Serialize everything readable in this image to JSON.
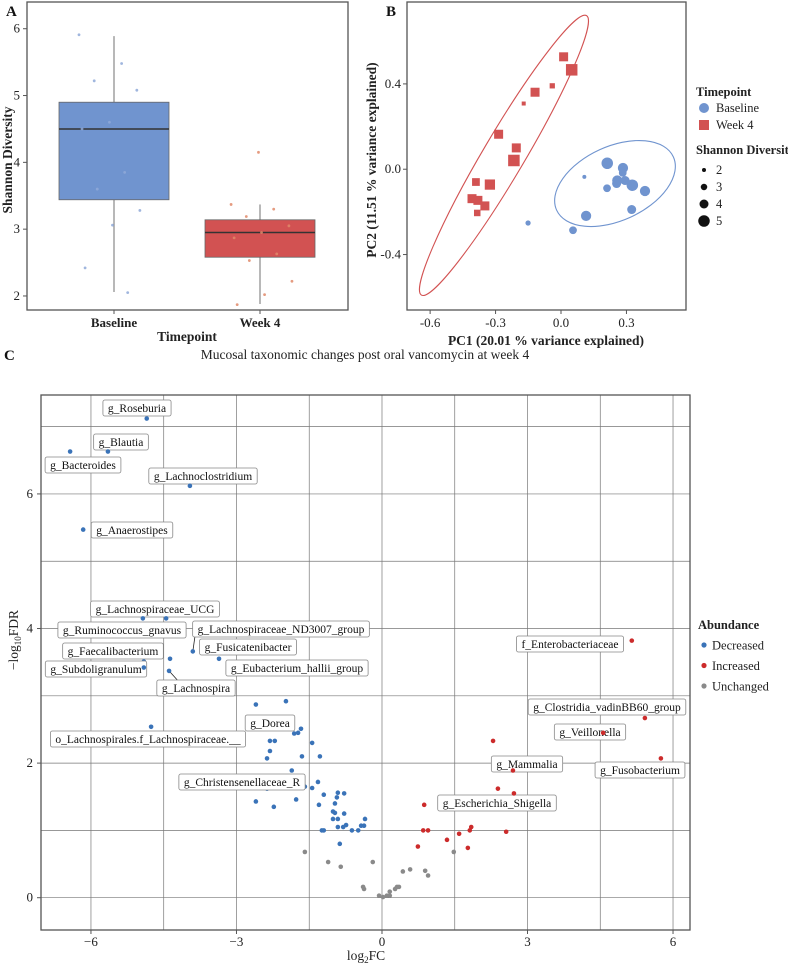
{
  "colors": {
    "baseline": "#7094cf",
    "week4": "#d25252",
    "decreased": "#3a73b8",
    "increased": "#cc2b2b",
    "unchanged": "#8a8a8a"
  },
  "chart_data": [
    {
      "panel": "A",
      "type": "box",
      "categories": [
        "Baseline",
        "Week 4"
      ],
      "xlabel": "Timepoint",
      "ylabel": "Shannon Diversity",
      "yticks": [
        2,
        3,
        4,
        5,
        6
      ],
      "ylim": [
        1.79,
        6.4
      ],
      "boxes": [
        {
          "name": "Baseline",
          "whisker_low": 2.06,
          "q1": 3.44,
          "median": 4.5,
          "q3": 4.9,
          "whisker_high": 5.89,
          "points": [
            5.91,
            5.48,
            5.22,
            5.08,
            4.6,
            4.5,
            3.85,
            3.6,
            3.28,
            3.06,
            2.42,
            2.05
          ]
        },
        {
          "name": "Week 4",
          "whisker_low": 1.88,
          "q1": 2.58,
          "median": 2.95,
          "q3": 3.14,
          "whisker_high": 3.37,
          "points": [
            4.15,
            3.37,
            3.3,
            3.19,
            3.05,
            2.95,
            2.87,
            2.63,
            2.53,
            2.22,
            2.02,
            1.87
          ]
        }
      ]
    },
    {
      "panel": "B",
      "type": "scatter",
      "xlabel": "PC1 (20.01 % variance explained)",
      "ylabel": "PC2 (11.51 % variance explained)",
      "xticks": [
        -0.6,
        -0.3,
        0.0,
        0.3
      ],
      "xtick_labels": [
        "-0.6",
        "-0.3",
        "0.0",
        "0.3"
      ],
      "yticks": [
        -0.4,
        0.0,
        0.4
      ],
      "ytick_labels": [
        "-0.4",
        "0.0",
        "0.4"
      ],
      "xlim": [
        -0.706,
        0.573
      ],
      "ylim": [
        -0.66,
        0.784
      ],
      "legend": {
        "timepoint_title": "Timepoint",
        "timepoint_items": [
          "Baseline",
          "Week 4"
        ],
        "size_title": "Shannon Diversity",
        "size_items": [
          "2",
          "3",
          "4",
          "5"
        ]
      },
      "series": [
        {
          "name": "Baseline",
          "shape": "circle",
          "points": [
            [
              0.212,
              0.028,
              5
            ],
            [
              0.284,
              0.006,
              4.5
            ],
            [
              0.283,
              -0.017,
              3.5
            ],
            [
              0.107,
              -0.036,
              2
            ],
            [
              0.258,
              -0.053,
              4.5
            ],
            [
              0.294,
              -0.053,
              4
            ],
            [
              0.327,
              -0.075,
              5
            ],
            [
              0.255,
              -0.067,
              4
            ],
            [
              0.211,
              -0.089,
              3.5
            ],
            [
              0.385,
              -0.102,
              4.5
            ],
            [
              0.324,
              -0.189,
              4
            ],
            [
              0.115,
              -0.219,
              4.5
            ],
            [
              -0.151,
              -0.252,
              2.5
            ],
            [
              0.055,
              -0.286,
              3.5
            ]
          ],
          "ellipse": {
            "axis_end1": [
              -0.02,
              -0.192
            ],
            "axis_end2": [
              0.515,
              0.058
            ],
            "semi_minor": 0.17
          }
        },
        {
          "name": "Week 4",
          "shape": "square",
          "points": [
            [
              0.012,
              0.527,
              4
            ],
            [
              0.049,
              0.466,
              5
            ],
            [
              -0.04,
              0.391,
              2.5
            ],
            [
              -0.119,
              0.361,
              4
            ],
            [
              -0.171,
              0.308,
              2
            ],
            [
              -0.286,
              0.164,
              4
            ],
            [
              -0.205,
              0.1,
              4
            ],
            [
              -0.216,
              0.041,
              5
            ],
            [
              -0.39,
              -0.06,
              3.5
            ],
            [
              -0.326,
              -0.072,
              4.5
            ],
            [
              -0.408,
              -0.138,
              4
            ],
            [
              -0.381,
              -0.146,
              4
            ],
            [
              -0.349,
              -0.172,
              4
            ],
            [
              -0.384,
              -0.205,
              3
            ]
          ],
          "ellipse": {
            "axis_end1": [
              0.117,
              0.72
            ],
            "axis_end2": [
              -0.64,
              -0.59
            ],
            "semi_minor": 0.095
          }
        }
      ]
    },
    {
      "panel": "C",
      "type": "scatter",
      "title": "Mucosal taxonomic changes post oral vancomycin at week 4",
      "xlabel_parts": [
        "log",
        "2",
        "FC"
      ],
      "ylabel_parts": [
        "−log",
        "10",
        "FDR"
      ],
      "xticks": [
        -6,
        -3,
        0,
        3,
        6
      ],
      "yticks": [
        0,
        2,
        4,
        6
      ],
      "xlim": [
        -7.03,
        6.35
      ],
      "ylim": [
        -0.48,
        7.47
      ],
      "grid": true,
      "legend": {
        "title": "Abundance",
        "items": [
          "Decreased",
          "Increased",
          "Unchanged"
        ]
      },
      "labeled_points": [
        {
          "label": "g_Roseburia",
          "x": -4.85,
          "y": 7.12,
          "group": "Decreased"
        },
        {
          "label": "g_Blautia",
          "x": -5.65,
          "y": 6.63,
          "group": "Decreased"
        },
        {
          "label": "g_Bacteroides",
          "x": -6.43,
          "y": 6.63,
          "group": "Decreased"
        },
        {
          "label": "g_Lachnoclostridium",
          "x": -3.96,
          "y": 6.12,
          "group": "Decreased"
        },
        {
          "label": "g_Anaerostipes",
          "x": -6.16,
          "y": 5.47,
          "group": "Decreased"
        },
        {
          "label": "g_Lachnospiraceae_UCG",
          "x": -4.45,
          "y": 4.15,
          "group": "Decreased"
        },
        {
          "label": "g_Ruminococcus_gnavus",
          "x": -4.93,
          "y": 4.15,
          "group": "Decreased"
        },
        {
          "label": "g_Lachnospiraceae_ND3007_group",
          "x": -3.9,
          "y": 3.66,
          "group": "Decreased"
        },
        {
          "label": "g_Fusicatenibacter",
          "x": -4.37,
          "y": 3.55,
          "group": "Decreased"
        },
        {
          "label": "g_Faecalibacterium",
          "x": -4.91,
          "y": 3.51,
          "group": "Decreased"
        },
        {
          "label": "g_Subdoligranulum",
          "x": -4.91,
          "y": 3.42,
          "group": "Decreased"
        },
        {
          "label": "g_Eubacterium_hallii_group",
          "x": -3.36,
          "y": 3.55,
          "group": "Decreased"
        },
        {
          "label": "g_Lachnospira",
          "x": -4.39,
          "y": 3.37,
          "group": "Decreased"
        },
        {
          "label": "g_Dorea",
          "x": -2.6,
          "y": 2.87,
          "group": "Decreased"
        },
        {
          "label": "o_Lachnospirales.f_Lachnospiraceae.__",
          "x": -4.76,
          "y": 2.54,
          "group": "Decreased"
        },
        {
          "label": "g_Christensenellaceae_R",
          "x": -2.6,
          "y": 1.43,
          "group": "Decreased"
        },
        {
          "label": "f_Enterobacteriaceae",
          "x": 5.15,
          "y": 3.82,
          "group": "Increased"
        },
        {
          "label": "g_Clostridia_vadinBB60_group",
          "x": 5.42,
          "y": 2.67,
          "group": "Increased"
        },
        {
          "label": "g_Veillonella",
          "x": 4.56,
          "y": 2.45,
          "group": "Increased"
        },
        {
          "label": "g_Mammalia",
          "x": 2.7,
          "y": 1.89,
          "group": "Increased"
        },
        {
          "label": "g_Fusobacterium",
          "x": 5.75,
          "y": 2.07,
          "group": "Increased"
        },
        {
          "label": "g_Escherichia_Shigella",
          "x": 2.72,
          "y": 1.55,
          "group": "Increased"
        }
      ],
      "points": {
        "Decreased": [
          [
            -1.98,
            2.92
          ],
          [
            -2.31,
            2.33
          ],
          [
            -2.21,
            2.33
          ],
          [
            -1.81,
            2.44
          ],
          [
            -1.73,
            2.45
          ],
          [
            -1.67,
            2.51
          ],
          [
            -1.44,
            2.3
          ],
          [
            -2.31,
            2.18
          ],
          [
            -2.37,
            2.07
          ],
          [
            -1.65,
            2.1
          ],
          [
            -1.28,
            2.1
          ],
          [
            -1.86,
            1.89
          ],
          [
            -2.02,
            1.8
          ],
          [
            -2.37,
            1.62
          ],
          [
            -1.59,
            1.65
          ],
          [
            -1.44,
            1.63
          ],
          [
            -1.32,
            1.72
          ],
          [
            -1.2,
            1.53
          ],
          [
            -0.91,
            1.56
          ],
          [
            -0.78,
            1.55
          ],
          [
            -0.93,
            1.49
          ],
          [
            -1.77,
            1.46
          ],
          [
            -2.23,
            1.35
          ],
          [
            -1.3,
            1.38
          ],
          [
            -0.97,
            1.4
          ],
          [
            -1.01,
            1.28
          ],
          [
            -0.97,
            1.26
          ],
          [
            -0.78,
            1.25
          ],
          [
            -1.01,
            1.17
          ],
          [
            -0.91,
            1.17
          ],
          [
            -0.35,
            1.17
          ],
          [
            -0.74,
            1.08
          ],
          [
            -0.8,
            1.05
          ],
          [
            -0.91,
            1.05
          ],
          [
            -0.43,
            1.07
          ],
          [
            -0.37,
            1.07
          ],
          [
            -1.24,
            1.0
          ],
          [
            -1.2,
            1.0
          ],
          [
            -0.62,
            1.0
          ],
          [
            -0.49,
            1.0
          ],
          [
            -0.87,
            0.8
          ]
        ],
        "Unchanged": [
          [
            -1.59,
            0.68
          ],
          [
            -1.11,
            0.53
          ],
          [
            -0.85,
            0.46
          ],
          [
            -0.19,
            0.53
          ],
          [
            -0.39,
            0.16
          ],
          [
            -0.37,
            0.13
          ],
          [
            -0.06,
            0.03
          ],
          [
            0.02,
            0.01
          ],
          [
            0.1,
            0.03
          ],
          [
            0.16,
            0.03
          ],
          [
            0.16,
            0.09
          ],
          [
            0.27,
            0.13
          ],
          [
            0.31,
            0.16
          ],
          [
            0.35,
            0.16
          ],
          [
            0.43,
            0.39
          ],
          [
            0.58,
            0.42
          ],
          [
            0.89,
            0.4
          ],
          [
            0.95,
            0.33
          ],
          [
            1.48,
            0.68
          ]
        ],
        "Increased": [
          [
            2.29,
            2.33
          ],
          [
            2.39,
            1.62
          ],
          [
            0.87,
            1.38
          ],
          [
            0.85,
            1.0
          ],
          [
            0.95,
            1.0
          ],
          [
            1.84,
            1.05
          ],
          [
            1.81,
            1.0
          ],
          [
            1.59,
            0.95
          ],
          [
            2.56,
            0.98
          ],
          [
            1.34,
            0.86
          ],
          [
            0.74,
            0.76
          ],
          [
            1.77,
            0.74
          ]
        ]
      }
    }
  ],
  "panel_labels": [
    "A",
    "B",
    "C"
  ]
}
